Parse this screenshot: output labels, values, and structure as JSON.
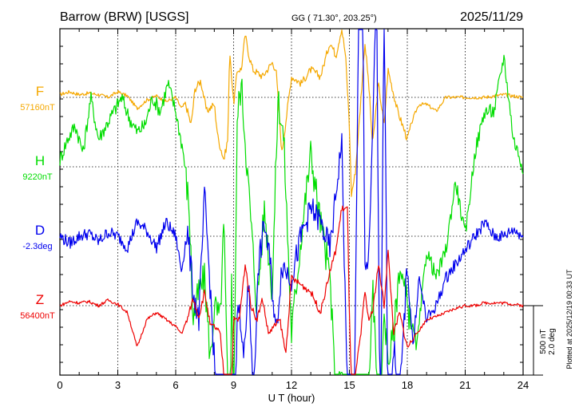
{
  "header": {
    "station": "Barrow (BRW)  [USGS]",
    "coords": "GG ( 71.30°, 203.25°)",
    "date": "2025/11/29"
  },
  "footer": {
    "plotted": "Plotted at 2025/12/19 00:33 UT"
  },
  "scale": {
    "nt_label": "500 nT",
    "deg_label": "2.0 deg"
  },
  "chart_data": {
    "type": "line",
    "title": "Barrow (BRW)  [USGS]",
    "xlabel": "U T (hour)",
    "ylabel": "",
    "xlim": [
      0,
      24
    ],
    "x_ticks": [
      "0",
      "3",
      "6",
      "9",
      "12",
      "15",
      "18",
      "21",
      "24"
    ],
    "grid": true,
    "series": [
      {
        "name": "F",
        "baseline_label": "57160nT",
        "color": "#f5a800",
        "x": [
          0,
          0.5,
          1,
          1.5,
          2,
          2.5,
          3,
          3.5,
          4,
          4.5,
          5,
          5.5,
          6,
          6.3,
          6.5,
          6.8,
          7,
          7.3,
          7.6,
          8,
          8.2,
          8.5,
          8.7,
          8.8,
          9,
          9.2,
          9.4,
          9.6,
          9.8,
          10,
          10.5,
          11,
          11.2,
          11.5,
          12,
          12.5,
          13,
          13.5,
          14,
          14.3,
          14.6,
          14.8,
          15,
          15.1,
          15.3,
          15.5,
          15.8,
          16,
          16.2,
          16.5,
          16.8,
          17,
          17.5,
          18,
          18.3,
          18.6,
          19,
          19.5,
          20,
          21,
          22,
          23,
          24
        ],
        "offsets_nt": [
          20,
          40,
          20,
          30,
          20,
          0,
          40,
          10,
          -80,
          -20,
          10,
          -30,
          0,
          -80,
          -40,
          -200,
          60,
          120,
          -100,
          -50,
          -300,
          -450,
          -300,
          350,
          -50,
          200,
          200,
          450,
          300,
          200,
          150,
          250,
          200,
          -400,
          150,
          100,
          200,
          150,
          400,
          300,
          500,
          300,
          -200,
          -700,
          -550,
          -200,
          400,
          100,
          -350,
          100,
          -200,
          200,
          -100,
          -300,
          -150,
          -50,
          -50,
          -100,
          0,
          0,
          0,
          20,
          0
        ]
      },
      {
        "name": "H",
        "baseline_label": "9220nT",
        "color": "#00dd00",
        "x": [
          0,
          0.4,
          0.8,
          1.2,
          1.6,
          2,
          2.4,
          2.8,
          3.2,
          3.6,
          4,
          4.4,
          4.8,
          5.2,
          5.6,
          6,
          6.4,
          6.7,
          6.9,
          7.2,
          7.5,
          7.8,
          8,
          8.3,
          8.5,
          8.7,
          8.8,
          8.9,
          9,
          9.2,
          9.4,
          9.8,
          10.2,
          10.6,
          11,
          11.3,
          11.6,
          12,
          12.5,
          13,
          13.5,
          14,
          14.3,
          14.6,
          14.8,
          15,
          15.2,
          15.4,
          15.6,
          15.8,
          16,
          16.2,
          16.4,
          16.6,
          16.8,
          17,
          17.3,
          17.6,
          18,
          18.5,
          19,
          19.5,
          20,
          20.5,
          21,
          21.5,
          22,
          22.5,
          23,
          23.5,
          24
        ],
        "offsets_nt": [
          50,
          200,
          300,
          100,
          500,
          200,
          300,
          400,
          500,
          350,
          250,
          300,
          500,
          400,
          600,
          400,
          100,
          -300,
          -1100,
          -900,
          -800,
          -1400,
          -1000,
          -1100,
          -400,
          -1700,
          -2000,
          -800,
          -1800,
          400,
          600,
          -200,
          -1000,
          -300,
          -900,
          500,
          200,
          -1200,
          -500,
          100,
          -400,
          -800,
          -1700,
          -1500,
          -1900,
          -2200,
          -3500,
          -2500,
          -1700,
          -1600,
          -1800,
          -800,
          -1500,
          -2000,
          -1000,
          -1400,
          -1200,
          -700,
          -1000,
          -1300,
          -600,
          -800,
          -600,
          -100,
          -500,
          100,
          400,
          400,
          800,
          200,
          0
        ]
      },
      {
        "name": "D",
        "baseline_label": "-2.3deg",
        "color": "#0000ee",
        "x": [
          0,
          0.5,
          1,
          1.5,
          2,
          2.5,
          3,
          3.5,
          4,
          4.5,
          5,
          5.5,
          6,
          6.3,
          6.6,
          6.9,
          7.2,
          7.5,
          7.8,
          8,
          8.3,
          8.5,
          8.7,
          8.8,
          8.9,
          9,
          9.2,
          9.5,
          9.8,
          10,
          10.3,
          10.6,
          10.9,
          11.2,
          11.5,
          12,
          12.5,
          13,
          13.5,
          14,
          14.3,
          14.6,
          14.9,
          15,
          15.1,
          15.2,
          15.4,
          15.6,
          15.8,
          16,
          16.2,
          16.4,
          16.6,
          16.8,
          17,
          17.3,
          17.6,
          18,
          18.3,
          18.6,
          19,
          19.5,
          20,
          20.5,
          21,
          21.5,
          22,
          22.5,
          23,
          23.5,
          24
        ],
        "offsets_nt": [
          0,
          -50,
          0,
          20,
          -40,
          30,
          0,
          -80,
          100,
          40,
          -80,
          100,
          0,
          -250,
          50,
          -400,
          -600,
          300,
          -400,
          -900,
          -1700,
          -1200,
          -1800,
          -3700,
          -2000,
          -1900,
          -400,
          -900,
          -300,
          -1200,
          -200,
          100,
          -200,
          -700,
          -200,
          -300,
          0,
          200,
          100,
          -100,
          300,
          700,
          -1200,
          -3100,
          -2800,
          -1800,
          500,
          3700,
          -200,
          -200,
          700,
          2000,
          -1800,
          1800,
          -1400,
          -800,
          -1200,
          -200,
          -800,
          -300,
          -600,
          -500,
          -300,
          -200,
          -100,
          0,
          100,
          0,
          0,
          50,
          0
        ]
      },
      {
        "name": "Z",
        "baseline_label": "56400nT",
        "color": "#ee0000",
        "x": [
          0,
          0.5,
          1,
          1.5,
          2,
          2.5,
          3,
          3.5,
          4,
          4.5,
          5,
          5.5,
          6,
          6.3,
          6.6,
          6.9,
          7.2,
          7.5,
          7.8,
          8,
          8.3,
          8.5,
          8.7,
          8.8,
          8.9,
          9,
          9.3,
          9.6,
          9.9,
          10.2,
          10.5,
          10.8,
          11.1,
          11.4,
          11.7,
          12,
          12.5,
          13,
          13.5,
          14,
          14.3,
          14.6,
          14.9,
          15,
          15.1,
          15.2,
          15.4,
          15.6,
          15.8,
          16,
          16.2,
          16.5,
          16.8,
          17,
          17.3,
          17.6,
          18,
          18.5,
          19,
          19.5,
          20,
          20.5,
          21,
          21.5,
          22,
          23,
          24
        ],
        "offsets_nt": [
          0,
          30,
          20,
          30,
          0,
          40,
          10,
          -50,
          -300,
          -100,
          -50,
          -100,
          -150,
          -200,
          -100,
          50,
          -80,
          100,
          -150,
          -150,
          -200,
          -500,
          -800,
          -1000,
          -600,
          -100,
          -100,
          300,
          0,
          -100,
          50,
          -200,
          -150,
          -100,
          -350,
          200,
          150,
          100,
          -50,
          250,
          400,
          700,
          700,
          -100,
          -500,
          -700,
          -400,
          -200,
          100,
          -100,
          -50,
          300,
          0,
          400,
          -200,
          -50,
          -300,
          -200,
          -100,
          -80,
          -50,
          -20,
          0,
          0,
          20,
          20,
          0
        ]
      }
    ],
    "y_offset_range_nt": [
      -4000,
      4000
    ]
  }
}
